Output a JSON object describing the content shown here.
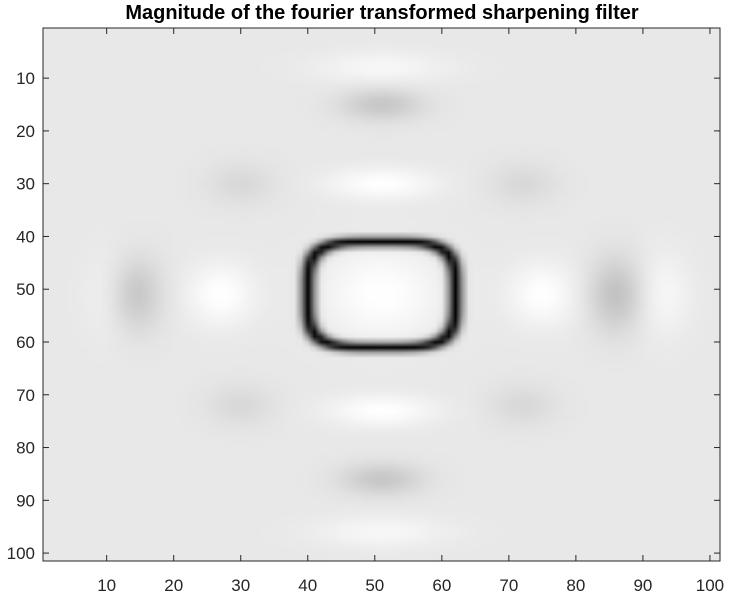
{
  "chart_data": {
    "type": "heatmap",
    "title": "Magnitude of the fourier transformed sharpening filter",
    "xlabel": "",
    "ylabel": "",
    "xlim": [
      0.5,
      101.5
    ],
    "ylim": [
      0.5,
      101.5
    ],
    "y_reversed": true,
    "grid": false,
    "colormap": "gray",
    "color_range": [
      0,
      1
    ],
    "grid_size": [
      101,
      101
    ],
    "x_ticks": [
      10,
      20,
      30,
      40,
      50,
      60,
      70,
      80,
      90,
      100
    ],
    "y_ticks": [
      10,
      20,
      30,
      40,
      50,
      60,
      70,
      80,
      90,
      100
    ],
    "x_tick_labels": [
      "10",
      "20",
      "30",
      "40",
      "50",
      "60",
      "70",
      "80",
      "90",
      "100"
    ],
    "y_tick_labels": [
      "10",
      "20",
      "30",
      "40",
      "50",
      "60",
      "70",
      "80",
      "90",
      "100"
    ],
    "base_level": 0.91,
    "features": [
      {
        "kind": "bright",
        "center": [
          51,
          51
        ],
        "radius": [
          9,
          9
        ],
        "value": 1.0
      },
      {
        "kind": "bright",
        "center": [
          27,
          51
        ],
        "radius": [
          5,
          6
        ],
        "value": 1.0
      },
      {
        "kind": "bright",
        "center": [
          75,
          51
        ],
        "radius": [
          5,
          6
        ],
        "value": 1.0
      },
      {
        "kind": "bright",
        "center": [
          51,
          30
        ],
        "radius": [
          8,
          3
        ],
        "value": 1.0
      },
      {
        "kind": "bright",
        "center": [
          51,
          73
        ],
        "radius": [
          8,
          3
        ],
        "value": 1.0
      },
      {
        "kind": "bright",
        "center": [
          11,
          51
        ],
        "radius": [
          4,
          8
        ],
        "value": 0.97
      },
      {
        "kind": "bright",
        "center": [
          93,
          51
        ],
        "radius": [
          4,
          8
        ],
        "value": 0.97
      },
      {
        "kind": "bright",
        "center": [
          51,
          8
        ],
        "radius": [
          10,
          3
        ],
        "value": 0.97
      },
      {
        "kind": "bright",
        "center": [
          51,
          96
        ],
        "radius": [
          10,
          3
        ],
        "value": 0.97
      },
      {
        "kind": "dark",
        "center": [
          14,
          51
        ],
        "radius": [
          4,
          7
        ],
        "value": 0.76
      },
      {
        "kind": "dark",
        "center": [
          86,
          51
        ],
        "radius": [
          4,
          7
        ],
        "value": 0.76
      },
      {
        "kind": "dark",
        "center": [
          51,
          15
        ],
        "radius": [
          6,
          3
        ],
        "value": 0.78
      },
      {
        "kind": "dark",
        "center": [
          51,
          86
        ],
        "radius": [
          6,
          3
        ],
        "value": 0.78
      },
      {
        "kind": "dark",
        "center": [
          30,
          30
        ],
        "radius": [
          5,
          4
        ],
        "value": 0.85
      },
      {
        "kind": "dark",
        "center": [
          72,
          30
        ],
        "radius": [
          5,
          4
        ],
        "value": 0.85
      },
      {
        "kind": "dark",
        "center": [
          30,
          72
        ],
        "radius": [
          5,
          4
        ],
        "value": 0.85
      },
      {
        "kind": "dark",
        "center": [
          72,
          72
        ],
        "radius": [
          5,
          4
        ],
        "value": 0.85
      }
    ],
    "zero_ring": {
      "center": [
        51,
        51
      ],
      "half_width": 11,
      "half_height": 10,
      "exponent": 4,
      "value": 0.0
    }
  }
}
